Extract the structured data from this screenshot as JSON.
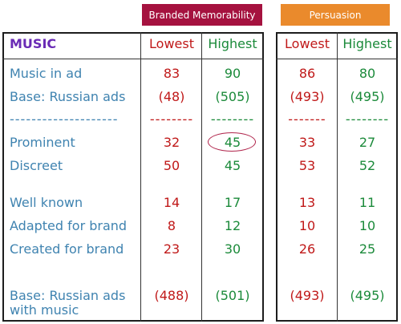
{
  "headers": {
    "branded": "Branded Memorability",
    "persuasion": "Persuasion"
  },
  "table": {
    "corner": "MUSIC",
    "columns": [
      "Lowest",
      "Highest",
      "Lowest",
      "Highest"
    ],
    "rows": [
      {
        "label": "Music in ad",
        "values": [
          "83",
          "90",
          "86",
          "80"
        ]
      },
      {
        "label": "Base: Russian ads",
        "values": [
          "(48)",
          "(505)",
          "(493)",
          "(495)"
        ]
      },
      {
        "label": "--------------------",
        "values": [
          "--------",
          "--------",
          "-------",
          "--------"
        ]
      },
      {
        "label": "Prominent",
        "values": [
          "32",
          "45",
          "33",
          "27"
        ]
      },
      {
        "label": "Discreet",
        "values": [
          "50",
          "45",
          "53",
          "52"
        ]
      },
      {
        "label": "Well known",
        "values": [
          "14",
          "17",
          "13",
          "11"
        ]
      },
      {
        "label": "Adapted for brand",
        "values": [
          "8",
          "12",
          "10",
          "10"
        ]
      },
      {
        "label": "Created for brand",
        "values": [
          "23",
          "30",
          "26",
          "25"
        ]
      },
      {
        "label_line1": "Base: Russian ads",
        "label_line2": "with music",
        "values": [
          "(488)",
          "(501)",
          "(493)",
          "(495)"
        ]
      }
    ]
  },
  "colors": {
    "branded_bg": "#a5123f",
    "persuasion_bg": "#ea8a2c",
    "label": "#3f83b0",
    "lowest": "#c01919",
    "highest": "#1b8a3a",
    "corner": "#6a2bb5"
  }
}
